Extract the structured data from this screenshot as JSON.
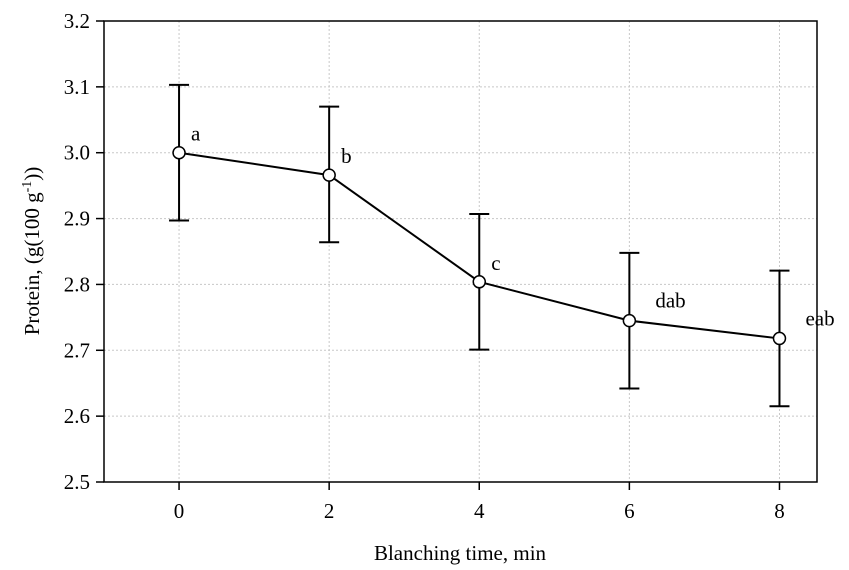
{
  "chart_data": {
    "type": "line",
    "xlabel": "Blanching time, min",
    "ylabel_main": "Protein,  (g(100 g",
    "ylabel_sup": "-1",
    "ylabel_tail": "))",
    "xlim": [
      -1,
      8.5
    ],
    "ylim": [
      2.5,
      3.2
    ],
    "xticks": [
      0,
      2,
      4,
      6,
      8
    ],
    "yticks": [
      2.5,
      2.6,
      2.7,
      2.8,
      2.9,
      3.0,
      3.1,
      3.2
    ],
    "ytick_labels": [
      "2.5",
      "2.6",
      "2.7",
      "2.8",
      "2.9",
      "3.0",
      "3.1",
      "3.2"
    ],
    "xtick_labels": [
      "0",
      "2",
      "4",
      "6",
      "8"
    ],
    "grid": true,
    "series": [
      {
        "x": [
          0,
          2,
          4,
          6,
          8
        ],
        "values": [
          3.0,
          2.966,
          2.804,
          2.745,
          2.718
        ],
        "err_low": [
          2.897,
          2.864,
          2.701,
          2.642,
          2.615
        ],
        "err_high": [
          3.103,
          3.07,
          2.907,
          2.848,
          2.821
        ],
        "labels": [
          "a",
          "b",
          "c",
          "dab",
          "eab"
        ]
      }
    ]
  }
}
